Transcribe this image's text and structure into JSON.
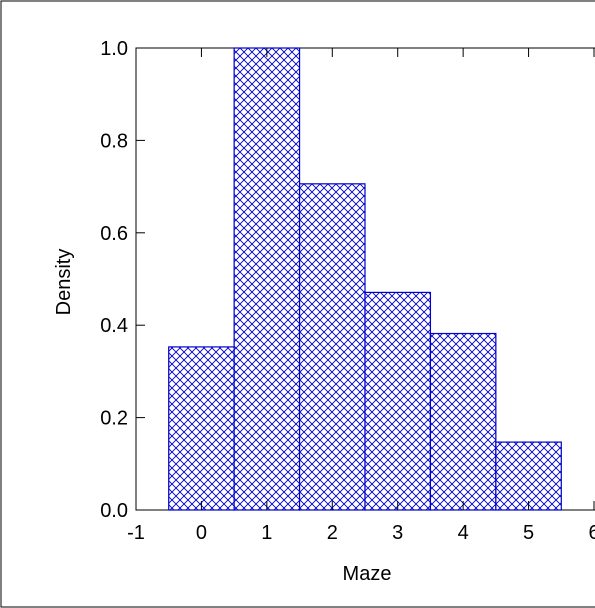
{
  "chart_data": {
    "type": "bar",
    "title": "",
    "xlabel": "Maze",
    "ylabel": "Density",
    "xlim": [
      -1,
      6
    ],
    "ylim": [
      0,
      1.0
    ],
    "x_ticks": [
      "-1",
      "0",
      "1",
      "2",
      "3",
      "4",
      "5",
      "6"
    ],
    "y_ticks": [
      "0.0",
      "0.2",
      "0.4",
      "0.6",
      "0.8",
      "1.0"
    ],
    "bins": [
      {
        "x_start": -0.5,
        "x_end": 0.5,
        "value": 0.353
      },
      {
        "x_start": 0.5,
        "x_end": 1.5,
        "value": 1.0
      },
      {
        "x_start": 1.5,
        "x_end": 2.5,
        "value": 0.706
      },
      {
        "x_start": 2.5,
        "x_end": 3.5,
        "value": 0.471
      },
      {
        "x_start": 3.5,
        "x_end": 4.5,
        "value": 0.382
      },
      {
        "x_start": 4.5,
        "x_end": 5.5,
        "value": 0.147
      }
    ],
    "grid": false,
    "bar_fill": "crosshatch",
    "bar_color": "#0000cc"
  }
}
